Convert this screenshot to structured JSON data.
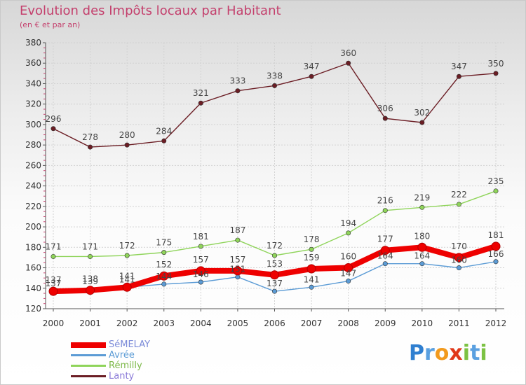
{
  "chart_data": {
    "type": "line",
    "title": "Evolution des Impôts locaux par Habitant",
    "subtitle": "(en € et par an)",
    "xlabel": "",
    "ylabel": "",
    "ylim": [
      120,
      380
    ],
    "yticks": [
      120,
      140,
      160,
      180,
      200,
      220,
      240,
      260,
      280,
      300,
      320,
      340,
      360,
      380
    ],
    "x": [
      "2000",
      "2001",
      "2002",
      "2003",
      "2004",
      "2005",
      "2006",
      "2007",
      "2008",
      "2009",
      "2010",
      "2011",
      "2012"
    ],
    "grid": true,
    "legend_position": "bottom-left",
    "series": [
      {
        "key": "lanty",
        "name": "Lanty",
        "color": "#6b1d24",
        "values": [
          296,
          278,
          280,
          284,
          321,
          333,
          338,
          347,
          360,
          306,
          302,
          347,
          350
        ],
        "labels": [
          "296",
          "278",
          "280",
          "284",
          "321",
          "333",
          "338",
          "347",
          "360",
          "306",
          "302",
          "347",
          "350"
        ]
      },
      {
        "key": "remilly",
        "name": "Rémilly",
        "color": "#8fd45a",
        "values": [
          171,
          171,
          172,
          175,
          181,
          187,
          172,
          178,
          194,
          216,
          219,
          222,
          235
        ],
        "labels": [
          "171",
          "171",
          "172",
          "175",
          "181",
          "187",
          "172",
          "178",
          "194",
          "216",
          "219",
          "222",
          "235"
        ]
      },
      {
        "key": "avree",
        "name": "Avrée",
        "color": "#5b9bd5",
        "values": [
          137,
          139,
          141,
          144,
          146,
          151,
          137,
          141,
          147,
          164,
          164,
          160,
          166
        ],
        "labels": [
          "137",
          "139",
          "141",
          "144",
          "146",
          "151",
          "137",
          "141",
          "147",
          "164",
          "164",
          "160",
          "166"
        ]
      },
      {
        "key": "semelay",
        "name": "SéMELAY",
        "color": "#ee0000",
        "values": [
          137,
          138,
          141,
          152,
          157,
          157,
          153,
          159,
          160,
          177,
          180,
          170,
          181
        ],
        "labels": [
          "137",
          "138",
          "141",
          "152",
          "157",
          "157",
          "153",
          "159",
          "160",
          "177",
          "180",
          "170",
          "181"
        ]
      }
    ],
    "legend_order": [
      "semelay",
      "avree",
      "remilly",
      "lanty"
    ]
  },
  "logo": {
    "letters": [
      "P",
      "r",
      "o",
      "x",
      "i",
      "t",
      "i"
    ],
    "colors": [
      "#2f7fd0",
      "#5aa0e0",
      "#f29a1d",
      "#e0381a",
      "#7cc243",
      "#5aa0e0",
      "#7cc243"
    ]
  }
}
